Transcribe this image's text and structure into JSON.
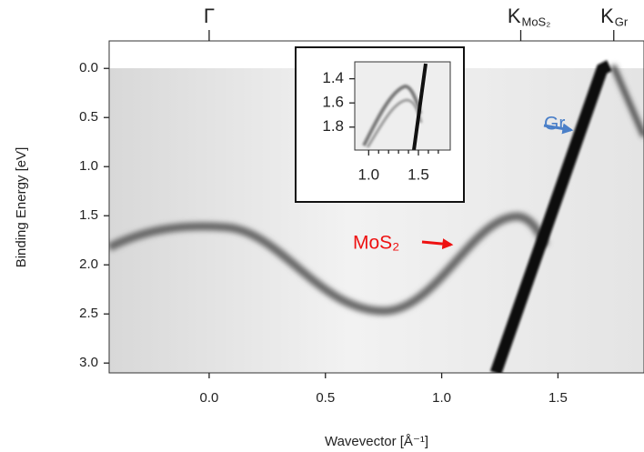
{
  "chart_data": [
    {
      "type": "image",
      "xlabel": "Wavevector [Å⁻¹]",
      "ylabel": "Binding Energy [eV]",
      "xlim": [
        -0.43,
        1.87
      ],
      "ylim": [
        3.1,
        -0.28
      ],
      "xticks": [
        {
          "value": 0,
          "label": "0.0"
        },
        0.5,
        {
          "value": 1,
          "label": "1.0"
        },
        1.5
      ],
      "yticks": [
        {
          "value": 0,
          "label": "0.0"
        },
        0.5,
        {
          "value": 1,
          "label": "1.0"
        },
        1.5,
        {
          "value": 2,
          "label": "2.0"
        },
        2.5,
        {
          "value": 3,
          "label": "3.0"
        }
      ],
      "top_ticks": [
        {
          "value": 0,
          "label": "Γ"
        },
        {
          "value": 1.34,
          "label": "K",
          "subscript": "MoS₂"
        },
        {
          "value": 1.74,
          "label": "K",
          "subscript": "Gr"
        }
      ],
      "annotations": [
        {
          "text": "Gr",
          "color": "#4a7fc8"
        },
        {
          "text": "MoS₂",
          "color": "#ee1111"
        }
      ]
    },
    {
      "type": "image",
      "xlim": [
        0.86,
        1.82
      ],
      "ylim": [
        1.99,
        1.26
      ],
      "xticks": [
        {
          "value": 1,
          "label": "1.0"
        },
        1.5
      ],
      "xminor": [
        1.1,
        1.2,
        1.3,
        1.4,
        1.6,
        1.7
      ],
      "yticks": [
        1.4,
        1.6,
        1.8
      ]
    }
  ]
}
